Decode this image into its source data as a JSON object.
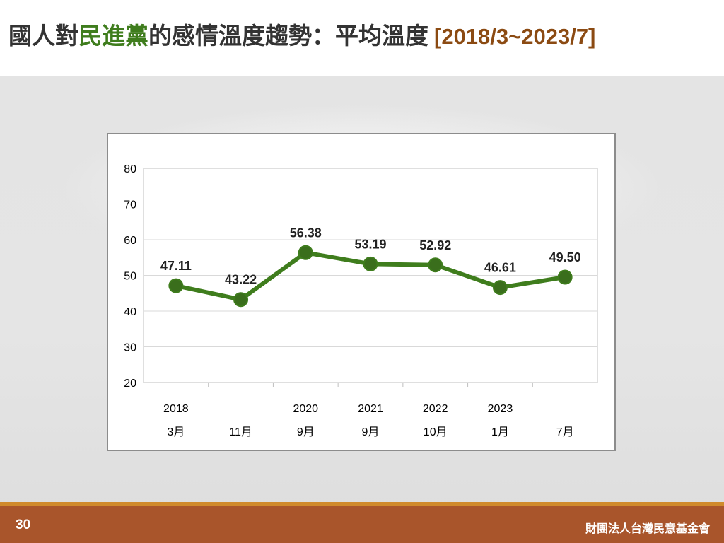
{
  "slide": {
    "title_part1": "國人對",
    "title_highlight": "民進黨",
    "title_part2": "的感情溫度趨勢：平均溫度",
    "title_range": "[2018/3~2023/7]",
    "page_number": "30",
    "organization": "財團法人台灣民意基金會",
    "colors": {
      "title": "#333333",
      "highlight": "#3f7d1d",
      "range": "#8b4a12",
      "footer": "#a9552b",
      "footer_line": "#d08a2c"
    }
  },
  "chart_data": {
    "type": "line",
    "categories_year": [
      "2018",
      "",
      "2020",
      "2021",
      "2022",
      "2023",
      ""
    ],
    "categories_month": [
      "3月",
      "11月",
      "9月",
      "9月",
      "10月",
      "1月",
      "7月"
    ],
    "series": [
      {
        "values": [
          47.11,
          43.22,
          56.38,
          53.19,
          52.92,
          46.61,
          49.5
        ],
        "labels": [
          "47.11",
          "43.22",
          "56.38",
          "53.19",
          "52.92",
          "46.61",
          "49.50"
        ],
        "color": "#3f7d1d",
        "marker_color": "#3a6e1c"
      }
    ],
    "ylim": [
      20,
      80
    ],
    "yticks": [
      "20",
      "30",
      "40",
      "50",
      "60",
      "70",
      "80"
    ],
    "grid": true,
    "legend": "none"
  }
}
